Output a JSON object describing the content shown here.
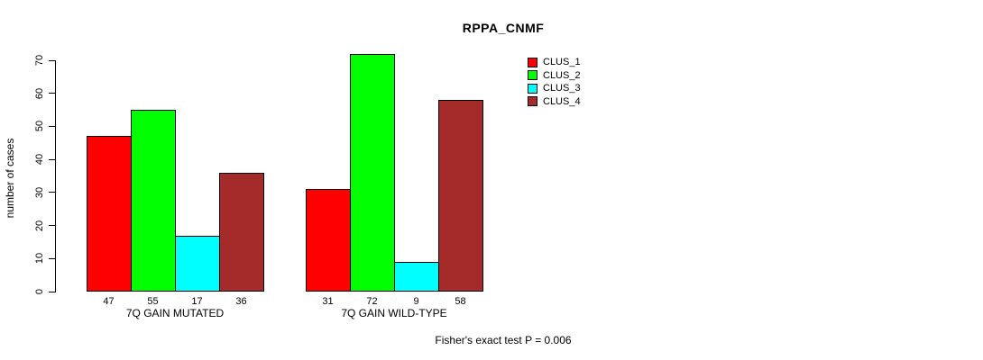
{
  "chart_data": {
    "type": "bar",
    "title": "RPPA_CNMF",
    "ylabel": "number of cases",
    "xlabel": "",
    "ylim": [
      0,
      70
    ],
    "yticks": [
      0,
      10,
      20,
      30,
      40,
      50,
      60,
      70
    ],
    "grid": false,
    "legend_position": "top-right",
    "categories": [
      "7Q GAIN MUTATED",
      "7Q GAIN WILD-TYPE"
    ],
    "series": [
      {
        "name": "CLUS_1",
        "color": "#ff0000",
        "values": [
          47,
          31
        ]
      },
      {
        "name": "CLUS_2",
        "color": "#00ff00",
        "values": [
          55,
          72
        ]
      },
      {
        "name": "CLUS_3",
        "color": "#00ffff",
        "values": [
          17,
          9
        ]
      },
      {
        "name": "CLUS_4",
        "color": "#a52a2a",
        "values": [
          36,
          58
        ]
      }
    ],
    "bar_value_labels_shown": true,
    "footnote": "Fisher's exact test P = 0.006"
  }
}
